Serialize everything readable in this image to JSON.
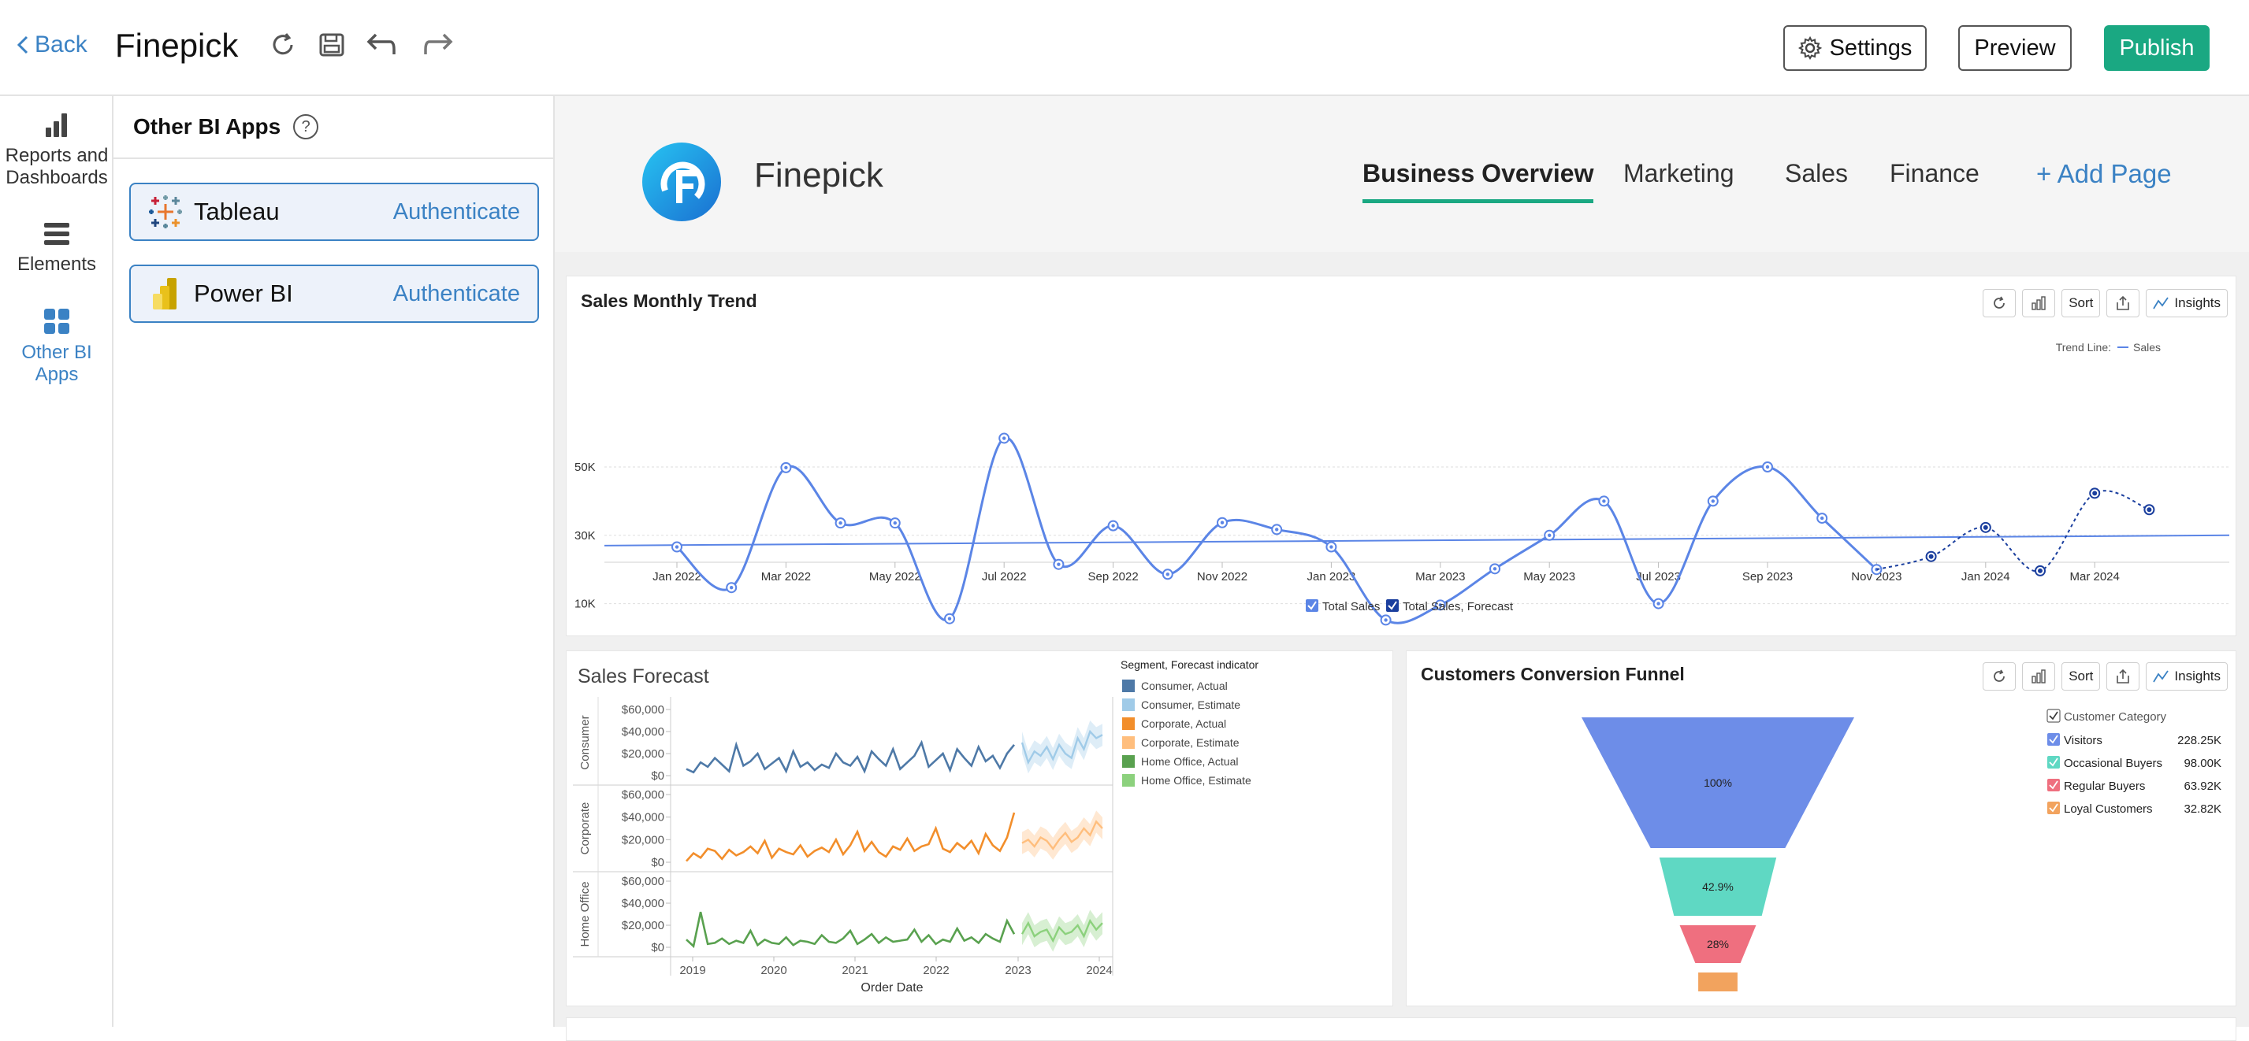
{
  "topbar": {
    "back_label": "Back",
    "title": "Finepick",
    "settings_label": "Settings",
    "preview_label": "Preview",
    "publish_label": "Publish"
  },
  "rail": {
    "items": [
      {
        "label": "Reports and Dashboards",
        "icon": "bar-chart-icon"
      },
      {
        "label": "Elements",
        "icon": "elements-icon"
      },
      {
        "label": "Other BI Apps",
        "icon": "grid-icon"
      }
    ]
  },
  "panel": {
    "title": "Other BI Apps",
    "help": "?",
    "apps": [
      {
        "name": "Tableau",
        "action": "Authenticate"
      },
      {
        "name": "Power BI",
        "action": "Authenticate"
      }
    ]
  },
  "site": {
    "brand": "Finepick",
    "tabs": [
      "Business Overview",
      "Marketing",
      "Sales",
      "Finance"
    ],
    "active_tab": "Business Overview",
    "add_page": "+ Add Page"
  },
  "colors": {
    "accent": "#1aa882",
    "link": "#3b82c4",
    "trend_line": "#5b85e6"
  },
  "widgets": {
    "tool_sort": "Sort",
    "tool_insights": "Insights"
  },
  "chart_data": [
    {
      "type": "line",
      "title": "Sales Monthly Trend",
      "legend_title": "Trend Line:",
      "legend_trend_label": "Sales",
      "legend": [
        "Total Sales",
        "Total Sales, Forecast"
      ],
      "x_ticks": [
        "Jan 2022",
        "Mar 2022",
        "May 2022",
        "Jul 2022",
        "Sep 2022",
        "Nov 2022",
        "Jan 2023",
        "Mar 2023",
        "May 2023",
        "Jul 2023",
        "Sep 2023",
        "Nov 2023",
        "Jan 2024",
        "Mar 2024"
      ],
      "y_ticks": [
        "10K",
        "30K",
        "50K"
      ],
      "ylim": [
        0,
        60000
      ],
      "series": [
        {
          "name": "Total Sales",
          "x": [
            "Jan 2022",
            "Feb 2022",
            "Mar 2022",
            "Apr 2022",
            "May 2022",
            "Jun 2022",
            "Jul 2022",
            "Aug 2022",
            "Sep 2022",
            "Oct 2022",
            "Nov 2022",
            "Dec 2022",
            "Jan 2023",
            "Feb 2023",
            "Mar 2023",
            "Apr 2023",
            "May 2023",
            "Jun 2023",
            "Jul 2023",
            "Aug 2023",
            "Sep 2023",
            "Oct 2023",
            "Nov 2023"
          ],
          "values": [
            26600,
            14700,
            49800,
            33600,
            33600,
            5600,
            58400,
            21500,
            32800,
            18600,
            33700,
            31700,
            26600,
            5200,
            9600,
            20200,
            30000,
            40000,
            10000,
            40000,
            50000,
            35000,
            20000
          ]
        },
        {
          "name": "Total Sales, Forecast",
          "x": [
            "Nov 2023",
            "Dec 2023",
            "Jan 2024",
            "Feb 2024",
            "Mar 2024",
            "Apr 2024"
          ],
          "values": [
            20000,
            23800,
            32300,
            19600,
            42300,
            37500
          ]
        }
      ],
      "trend_line": [
        27000,
        30000
      ]
    },
    {
      "type": "line",
      "title": "Sales Forecast",
      "legend_title": "Segment, Forecast indicator",
      "legend": [
        {
          "label": "Consumer, Actual",
          "color": "#4e79a7"
        },
        {
          "label": "Consumer, Estimate",
          "color": "#a0cbe8"
        },
        {
          "label": "Corporate, Actual",
          "color": "#f28e2b"
        },
        {
          "label": "Corporate, Estimate",
          "color": "#ffbe7d"
        },
        {
          "label": "Home Office, Actual",
          "color": "#59a14f"
        },
        {
          "label": "Home Office, Estimate",
          "color": "#8cd17d"
        }
      ],
      "rows": [
        "Consumer",
        "Corporate",
        "Home Office"
      ],
      "y_ticks": [
        "$60,000",
        "$40,000",
        "$20,000",
        "$0"
      ],
      "x_ticks": [
        "2019",
        "2020",
        "2021",
        "2022",
        "2023",
        "2024"
      ],
      "xlabel": "Order Date",
      "ylim": [
        0,
        60000
      ],
      "series": [
        {
          "name": "Consumer, Actual",
          "values": [
            6000,
            3000,
            12000,
            8000,
            16000,
            10000,
            4000,
            28000,
            9000,
            13000,
            20000,
            6000,
            11000,
            16000,
            4000,
            22000,
            8000,
            12000,
            5000,
            10000,
            7000,
            20000,
            12000,
            9000,
            17000,
            4000,
            22000,
            15000,
            9000,
            24000,
            6000,
            12000,
            18000,
            30000,
            8000,
            14000,
            20000,
            5000,
            24000,
            16000,
            9000,
            26000,
            13000,
            18000,
            7000,
            20000,
            28000
          ]
        },
        {
          "name": "Consumer, Estimate",
          "values": [
            30000,
            12000,
            22000,
            18000,
            26000,
            15000,
            28000,
            20000,
            16000,
            34000,
            24000,
            40000,
            34000,
            37000
          ]
        },
        {
          "name": "Corporate, Actual",
          "values": [
            1000,
            8000,
            4000,
            12000,
            10000,
            3000,
            11000,
            6000,
            9000,
            14000,
            8000,
            19000,
            4000,
            12000,
            9000,
            7000,
            15000,
            5000,
            10000,
            13000,
            9000,
            20000,
            7000,
            15000,
            27000,
            10000,
            18000,
            9000,
            5000,
            14000,
            11000,
            21000,
            10000,
            14000,
            16000,
            30000,
            12000,
            9000,
            17000,
            12000,
            19000,
            8000,
            25000,
            15000,
            10000,
            22000,
            44000
          ]
        },
        {
          "name": "Corporate, Estimate",
          "values": [
            17000,
            20000,
            14000,
            22000,
            19000,
            12000,
            20000,
            26000,
            18000,
            22000,
            30000,
            24000,
            36000,
            30000
          ]
        },
        {
          "name": "Home Office, Actual",
          "values": [
            7000,
            1000,
            32000,
            3000,
            4000,
            8000,
            3000,
            6000,
            4000,
            15000,
            2000,
            7000,
            4000,
            3000,
            9000,
            2000,
            6000,
            5000,
            3000,
            11000,
            5000,
            4000,
            8000,
            15000,
            3000,
            7000,
            12000,
            4000,
            9000,
            5000,
            6000,
            7000,
            16000,
            5000,
            11000,
            3000,
            7000,
            5000,
            17000,
            6000,
            9000,
            4000,
            12000,
            8000,
            5000,
            24000,
            12000
          ]
        },
        {
          "name": "Home Office, Estimate",
          "values": [
            12000,
            22000,
            10000,
            14000,
            16000,
            6000,
            18000,
            12000,
            14000,
            20000,
            10000,
            24000,
            16000,
            22000
          ]
        }
      ]
    },
    {
      "type": "funnel",
      "title": "Customers Conversion Funnel",
      "legend_title": "Customer Category",
      "stages": [
        {
          "name": "Visitors",
          "value": "228.25K",
          "label": "100%",
          "color": "#6d8de8"
        },
        {
          "name": "Occasional Buyers",
          "value": "98.00K",
          "label": "42.9%",
          "color": "#5fd8c3"
        },
        {
          "name": "Regular Buyers",
          "value": "63.92K",
          "label": "28%",
          "color": "#ef6f7f"
        },
        {
          "name": "Loyal Customers",
          "value": "32.82K",
          "label": "",
          "color": "#f2a35e"
        }
      ],
      "fractions": [
        1.0,
        0.429,
        0.28,
        0.144
      ]
    }
  ]
}
